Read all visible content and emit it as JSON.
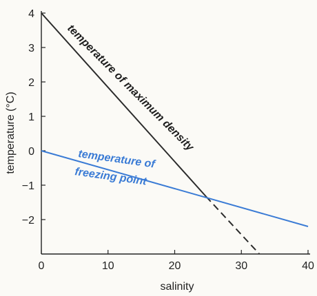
{
  "chart_data": {
    "type": "line",
    "title": "",
    "xlabel": "salinity",
    "ylabel": "temperature (°C)",
    "xlim": [
      0,
      40
    ],
    "ylim": [
      -3,
      4
    ],
    "x_ticks": [
      0,
      10,
      20,
      30,
      40
    ],
    "y_ticks": [
      4,
      3,
      2,
      1,
      0,
      -1,
      -2
    ],
    "y_tick_labels": [
      "4",
      "3",
      "2",
      "1",
      "0",
      "−1",
      "−2"
    ],
    "grid": false,
    "series": [
      {
        "name": "temperature of maximum density",
        "color": "#2b2b2b",
        "points": [
          [
            0,
            4
          ],
          [
            24.7,
            -1.33
          ]
        ],
        "extension_dashed": [
          [
            24.7,
            -1.33
          ],
          [
            32.7,
            -3
          ]
        ]
      },
      {
        "name": "temperature of freezing point",
        "color": "#3a7bd5",
        "points": [
          [
            0,
            0
          ],
          [
            40,
            -2.2
          ]
        ]
      }
    ]
  }
}
